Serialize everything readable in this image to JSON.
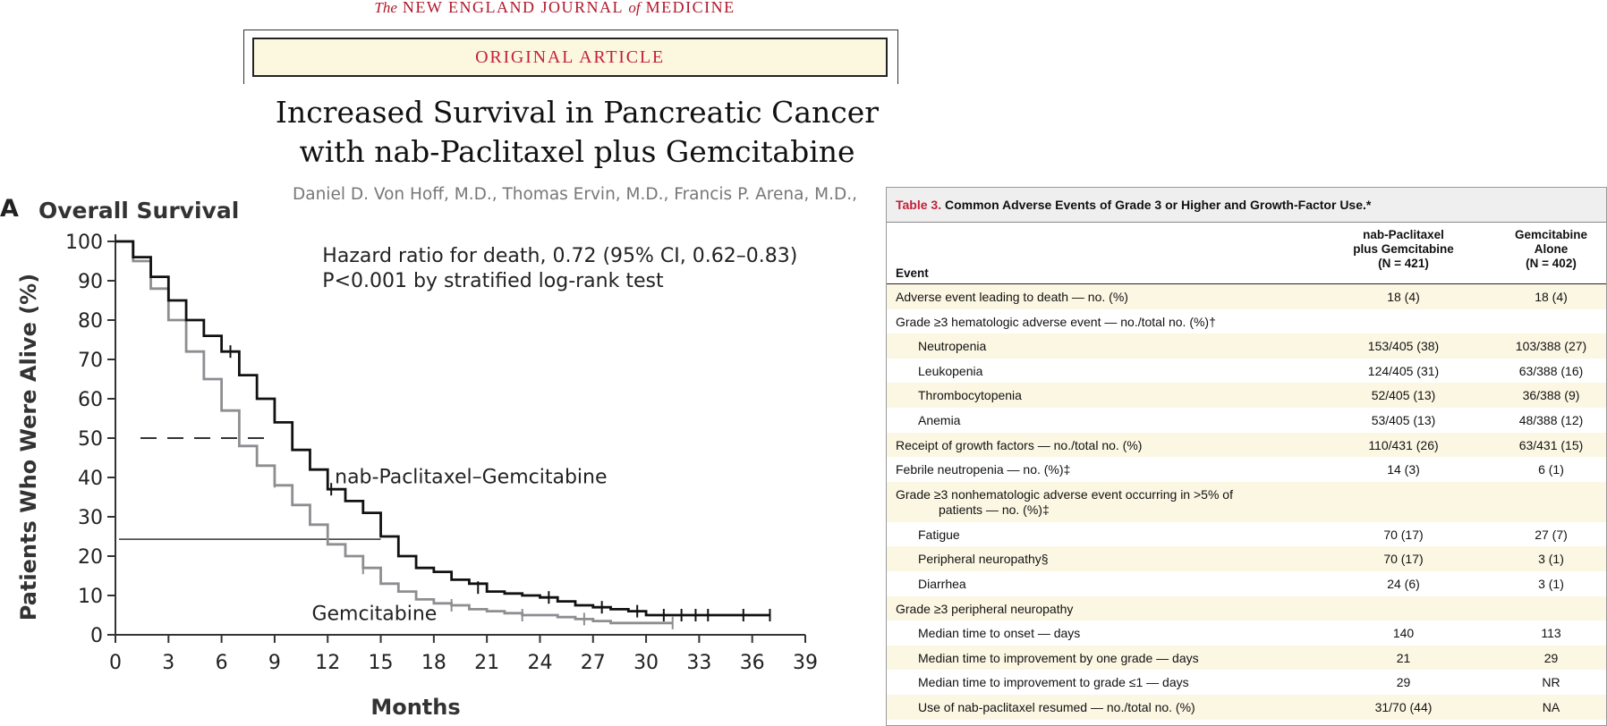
{
  "journal": {
    "the": "The",
    "new_england": "NEW ENGLAND JOURNAL",
    "of": "of",
    "medicine": "MEDICINE"
  },
  "banner": "ORIGINAL ARTICLE",
  "title_line1": "Increased Survival in Pancreatic Cancer",
  "title_line2": "with nab-Paclitaxel plus Gemcitabine",
  "authors": "Daniel D. Von Hoff, M.D., Thomas Ervin, M.D., Francis P. Arena, M.D.,",
  "colors": {
    "accent": "#c3213a",
    "banner_bg": "#fcf7df",
    "nab_line": "#111111",
    "gem_line": "#8e8e92",
    "row_alt": "#fcf7e3"
  },
  "panel": {
    "label": "A",
    "title": "Overall Survival"
  },
  "chart_data": {
    "type": "line",
    "title": "Overall Survival",
    "xlabel": "Months",
    "ylabel": "Patients Who Were Alive (%)",
    "xlim": [
      0,
      39
    ],
    "ylim": [
      0,
      100
    ],
    "xticks": [
      "0",
      "3",
      "6",
      "9",
      "12",
      "15",
      "18",
      "21",
      "24",
      "27",
      "30",
      "33",
      "36",
      "39"
    ],
    "yticks": [
      "0",
      "10",
      "20",
      "30",
      "40",
      "50",
      "60",
      "70",
      "80",
      "90",
      "100"
    ],
    "annotation_lines": [
      "Hazard ratio for death, 0.72 (95% CI, 0.62–0.83)",
      "P<0.001 by stratified log-rank test"
    ],
    "median_reference": {
      "y": 50,
      "x_to": 9
    },
    "secondary_reference": {
      "y": 24.3,
      "x_to": 15
    },
    "series": [
      {
        "name": "nab-Paclitaxel–Gemcitabine",
        "x": [
          0,
          1,
          2,
          3,
          4,
          5,
          6,
          7,
          8,
          9,
          10,
          11,
          12,
          13,
          14,
          15,
          16,
          17,
          18,
          19,
          20,
          21,
          22,
          23,
          24,
          25,
          26,
          27,
          28,
          29,
          30,
          31,
          32,
          33,
          34,
          35,
          36,
          37
        ],
        "y": [
          100,
          96,
          91,
          85,
          80,
          76,
          72,
          66,
          60,
          54,
          47,
          42,
          37,
          34,
          31,
          25,
          20,
          17,
          16,
          14,
          13,
          11,
          10.5,
          10,
          9.5,
          8.5,
          7.5,
          7,
          6.5,
          6,
          5,
          5,
          5,
          5,
          5,
          5,
          5,
          5
        ],
        "censor": [
          [
            6.5,
            72
          ],
          [
            12.2,
            37
          ],
          [
            20.5,
            12
          ],
          [
            24.5,
            9.5
          ],
          [
            27.5,
            7
          ],
          [
            29.5,
            6
          ],
          [
            31,
            5
          ],
          [
            32,
            5
          ],
          [
            32.8,
            5
          ],
          [
            33.5,
            5
          ],
          [
            35.5,
            5
          ],
          [
            37,
            5
          ]
        ]
      },
      {
        "name": "Gemcitabine",
        "x": [
          0,
          1,
          2,
          3,
          4,
          5,
          6,
          7,
          8,
          9,
          10,
          11,
          12,
          13,
          14,
          15,
          16,
          17,
          18,
          19,
          20,
          21,
          22,
          23,
          24,
          25,
          26,
          27,
          28,
          29,
          30,
          31.5
        ],
        "y": [
          100,
          95,
          88,
          80,
          72,
          65,
          57,
          48,
          43,
          38,
          33,
          28,
          23,
          20,
          17,
          13,
          11,
          9,
          8,
          7.5,
          6.5,
          6,
          5.5,
          5,
          5,
          4.5,
          4,
          3.5,
          3,
          3,
          3,
          3
        ],
        "censor": [
          [
            9,
            39
          ],
          [
            14,
            17
          ],
          [
            19,
            7.5
          ],
          [
            23,
            5
          ],
          [
            26.5,
            4
          ],
          [
            31.5,
            3
          ]
        ]
      }
    ]
  },
  "table": {
    "number": "Table 3.",
    "title": "Common Adverse Events of Grade 3 or Higher and Growth-Factor Use.*",
    "col_event": "Event",
    "col1": [
      "nab-Paclitaxel",
      "plus Gemcitabine",
      "(N = 421)"
    ],
    "col2": [
      "Gemcitabine",
      "Alone",
      "(N = 402)"
    ],
    "rows": [
      {
        "label": "Adverse event leading to death — no. (%)",
        "v1": "18 (4)",
        "v2": "18 (4)"
      },
      {
        "label": "Grade ≥3 hematologic adverse event — no./total no. (%)†",
        "v1": "",
        "v2": ""
      },
      {
        "label": "Neutropenia",
        "v1": "153/405 (38)",
        "v2": "103/388 (27)"
      },
      {
        "label": "Leukopenia",
        "v1": "124/405 (31)",
        "v2": "63/388 (16)"
      },
      {
        "label": "Thrombocytopenia",
        "v1": "52/405 (13)",
        "v2": "36/388 (9)"
      },
      {
        "label": "Anemia",
        "v1": "53/405 (13)",
        "v2": "48/388 (12)"
      },
      {
        "label": "Receipt of growth factors — no./total no. (%)",
        "v1": "110/431 (26)",
        "v2": "63/431 (15)"
      },
      {
        "label": "Febrile neutropenia — no. (%)‡",
        "v1": "14 (3)",
        "v2": "6 (1)"
      },
      {
        "label": "Grade ≥3 nonhematologic adverse event occurring in >5% of",
        "label2": "patients — no. (%)‡",
        "v1": "",
        "v2": ""
      },
      {
        "label": "Fatigue",
        "v1": "70 (17)",
        "v2": "27 (7)"
      },
      {
        "label": "Peripheral neuropathy§",
        "v1": "70 (17)",
        "v2": "3 (1)"
      },
      {
        "label": "Diarrhea",
        "v1": "24 (6)",
        "v2": "3 (1)"
      },
      {
        "label": "Grade ≥3 peripheral neuropathy",
        "v1": "",
        "v2": ""
      },
      {
        "label": "Median time to onset — days",
        "v1": "140",
        "v2": "113"
      },
      {
        "label": "Median time to improvement by one grade — days",
        "v1": "21",
        "v2": "29"
      },
      {
        "label": "Median time to improvement to grade ≤1 — days",
        "v1": "29",
        "v2": "NR"
      },
      {
        "label": "Use of nab-paclitaxel resumed — no./total no. (%)",
        "v1": "31/70 (44)",
        "v2": "NA"
      }
    ]
  }
}
